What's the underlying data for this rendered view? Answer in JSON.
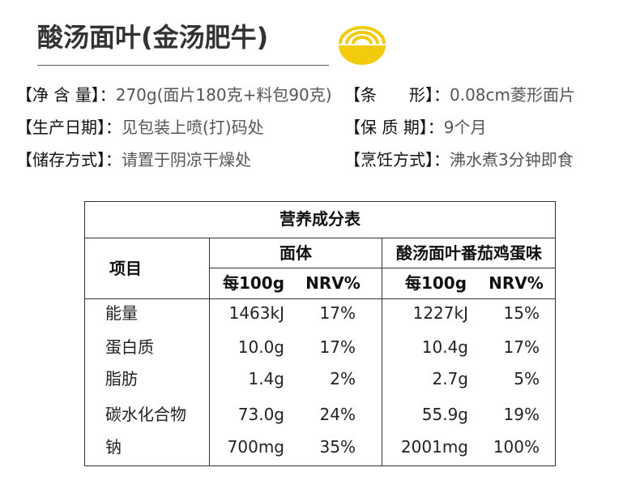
{
  "header": {
    "title": "酸汤面叶(金汤肥牛)"
  },
  "info": [
    [
      {
        "label": "【净 含 量】：",
        "value": "270g(面片180克+料包90克)"
      },
      {
        "label": "【条　　形】：",
        "value": "0.08cm菱形面片"
      }
    ],
    [
      {
        "label": "【生产日期】：",
        "value": "见包装上喷(打)码处"
      },
      {
        "label": "【保 质 期】：",
        "value": "9个月"
      }
    ],
    [
      {
        "label": "【储存方式】：",
        "value": "请置于阴凉干燥处"
      },
      {
        "label": "【烹饪方式】：",
        "value": "沸水煮3分钟即食"
      }
    ]
  ],
  "table": {
    "title": "营养成分表",
    "item_header": "项目",
    "groups": [
      "面体",
      "酸汤面叶番茄鸡蛋味"
    ],
    "subheaders": [
      "每100g",
      "NRV%",
      "每100g",
      "NRV%"
    ],
    "rows": [
      [
        "能量",
        "1463kJ",
        "17%",
        "1227kJ",
        "15%"
      ],
      [
        "蛋白质",
        "10.0g",
        "17%",
        "10.4g",
        "17%"
      ],
      [
        "脂肪",
        "1.4g",
        "2%",
        "2.7g",
        "5%"
      ],
      [
        "碳水化合物",
        "73.0g",
        "24%",
        "55.9g",
        "19%"
      ],
      [
        "钠",
        "700mg",
        "35%",
        "2001mg",
        "100%"
      ]
    ]
  }
}
